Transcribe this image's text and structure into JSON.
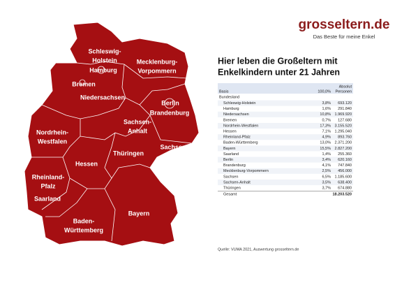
{
  "logo": {
    "name": "grosseltern.de",
    "tagline": "Das Beste für meine Enkel"
  },
  "title": [
    "Hier leben die Großeltern mit",
    "Enkelkindern unter 21 Jahren"
  ],
  "map": {
    "labels": [
      [
        "Schleswig-",
        "Holstein"
      ],
      [
        "Hamburg"
      ],
      [
        "Mecklenburg-",
        "Vorpommern"
      ],
      [
        "Bremen"
      ],
      [
        "Niedersachsen"
      ],
      [
        "Berlin"
      ],
      [
        "Brandenburg"
      ],
      [
        "Sachsen-",
        "Anhalt"
      ],
      [
        "Nordrhein-",
        "Westfalen"
      ],
      [
        "Thüringen"
      ],
      [
        "Sachsen"
      ],
      [
        "Hessen"
      ],
      [
        "Rheinland-",
        "Pfalz"
      ],
      [
        "Saarland"
      ],
      [
        "Bayern"
      ],
      [
        "Baden-",
        "Württemberg"
      ]
    ]
  },
  "table": {
    "header": [
      "Absolut",
      "Personen"
    ],
    "basis": [
      "Basis",
      "100,0%"
    ],
    "group": "Bundesland",
    "rows": [
      [
        "Schleswig-Holstein",
        "3,8%",
        "693.120"
      ],
      [
        "Hamburg",
        "1,6%",
        "291.840"
      ],
      [
        "Niedersachsen",
        "10,8%",
        "1.969.920"
      ],
      [
        "Bremen",
        "0,7%",
        "127.680"
      ],
      [
        "Nordrhein-Westfalen",
        "17,3%",
        "3.155.520"
      ],
      [
        "Hessen",
        "7,1%",
        "1.295.040"
      ],
      [
        "Rheinland-Pfalz",
        "4,9%",
        "893.760"
      ],
      [
        "Baden-Württemberg",
        "13,0%",
        "2.371.200"
      ],
      [
        "Bayern",
        "15,5%",
        "2.827.200"
      ],
      [
        "Saarland",
        "1,4%",
        "255.360"
      ],
      [
        "Berlin",
        "3,4%",
        "620.160"
      ],
      [
        "Brandenburg",
        "4,1%",
        "747.840"
      ],
      [
        "Mecklenburg-Vorpommern",
        "2,5%",
        "456.000"
      ],
      [
        "Sachsen",
        "6,5%",
        "1.185.600"
      ],
      [
        "Sachsen-Anhalt",
        "3,5%",
        "638.400"
      ],
      [
        "Thüringen",
        "3,7%",
        "674.880"
      ]
    ],
    "total": [
      "Gesamt",
      "18.203.520"
    ]
  },
  "source": "Quelle: VUMA 2021, Auswertung grosseltern.de"
}
